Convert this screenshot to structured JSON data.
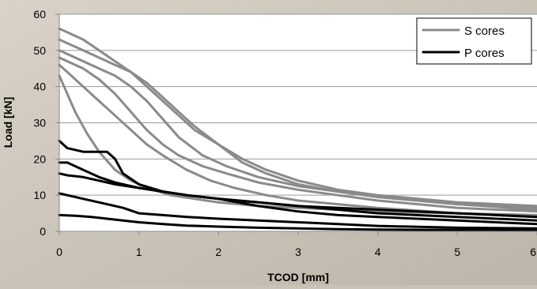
{
  "chart_data": {
    "type": "line",
    "title": "",
    "xlabel": "TCOD [mm]",
    "ylabel": "Load [kN]",
    "xlim": [
      0,
      6
    ],
    "ylim": [
      0,
      60
    ],
    "xticks": [
      "0",
      "1",
      "2",
      "3",
      "4",
      "5",
      "6"
    ],
    "yticks": [
      "0",
      "10",
      "20",
      "30",
      "40",
      "50",
      "60"
    ],
    "grid": "horizontal",
    "legend_position": "top-right",
    "legend": [
      {
        "label": "S cores",
        "color": "#8a8a8a"
      },
      {
        "label": "P cores",
        "color": "#000000"
      }
    ],
    "series": [
      {
        "name": "S cores",
        "color": "#8a8a8a",
        "x": [
          0,
          0.1,
          0.3,
          0.5,
          0.7,
          0.9,
          1.1,
          1.3,
          1.5,
          1.7,
          2.0,
          2.3,
          2.6,
          3.0,
          3.5,
          4.0,
          5.0,
          6.0
        ],
        "y": [
          56,
          55,
          53,
          50,
          47,
          44,
          40,
          36,
          32,
          28,
          24,
          20,
          17,
          14,
          11.5,
          10,
          8,
          7
        ]
      },
      {
        "name": "S cores",
        "color": "#8a8a8a",
        "x": [
          0,
          0.1,
          0.3,
          0.5,
          0.7,
          0.9,
          1.1,
          1.3,
          1.5,
          1.7,
          2.0,
          2.3,
          2.6,
          3.0,
          3.5,
          4.0,
          5.0,
          6.0
        ],
        "y": [
          53,
          52,
          50,
          48,
          46,
          44,
          41,
          37,
          33,
          29,
          24,
          19,
          16,
          13,
          11,
          9.5,
          7.5,
          6.5
        ]
      },
      {
        "name": "S cores",
        "color": "#8a8a8a",
        "x": [
          0,
          0.1,
          0.3,
          0.5,
          0.7,
          0.9,
          1.1,
          1.3,
          1.5,
          1.8,
          2.1,
          2.5,
          3.0,
          3.5,
          4.0,
          5.0,
          6.0
        ],
        "y": [
          50,
          49,
          47,
          45,
          43,
          40,
          36,
          31,
          26,
          21,
          18,
          15,
          12.5,
          11,
          9.5,
          7.5,
          6
        ]
      },
      {
        "name": "S cores",
        "color": "#8a8a8a",
        "x": [
          0,
          0.1,
          0.3,
          0.5,
          0.7,
          0.9,
          1.1,
          1.3,
          1.5,
          1.8,
          2.1,
          2.5,
          3.0,
          3.5,
          4.0,
          5.0,
          6.0
        ],
        "y": [
          48,
          47,
          45,
          42,
          38,
          33,
          28,
          24,
          21,
          18,
          16,
          13.5,
          11.5,
          10,
          8.5,
          6.5,
          5.5
        ]
      },
      {
        "name": "S cores",
        "color": "#8a8a8a",
        "x": [
          0,
          0.1,
          0.3,
          0.5,
          0.7,
          0.9,
          1.1,
          1.3,
          1.6,
          1.9,
          2.2,
          2.6,
          3.0,
          3.5,
          4.0,
          5.0,
          6.0
        ],
        "y": [
          46,
          44,
          40,
          36,
          32,
          28,
          24,
          21,
          17,
          14,
          12,
          10,
          8.5,
          7.5,
          6.5,
          5,
          4
        ]
      },
      {
        "name": "S cores",
        "color": "#8a8a8a",
        "x": [
          0,
          0.1,
          0.2,
          0.35,
          0.5,
          0.7,
          0.9,
          1.1,
          1.4,
          1.7,
          2.0,
          2.5,
          3.0,
          3.5,
          4.0,
          5.0,
          6.0
        ],
        "y": [
          43,
          38,
          33,
          27,
          22,
          17,
          14,
          12,
          10,
          9,
          8,
          7,
          6.5,
          6,
          5.5,
          5,
          4.5
        ]
      },
      {
        "name": "P cores",
        "color": "#000000",
        "x": [
          0,
          0.1,
          0.3,
          0.5,
          0.6,
          0.7,
          0.8,
          1.0,
          1.3,
          1.6,
          2.0,
          2.5,
          3.0,
          3.5,
          4.0,
          5.0,
          6.0
        ],
        "y": [
          25,
          23,
          22,
          22,
          22,
          20,
          16,
          13,
          11,
          10,
          9,
          8,
          7,
          6.5,
          6,
          5,
          4
        ]
      },
      {
        "name": "P cores",
        "color": "#000000",
        "x": [
          0,
          0.1,
          0.3,
          0.5,
          0.7,
          1.0,
          1.3,
          1.6,
          2.0,
          2.5,
          3.0,
          3.5,
          4.0,
          5.0,
          6.0
        ],
        "y": [
          19,
          19,
          17,
          15,
          13.5,
          12,
          11,
          10,
          9,
          8,
          7,
          6,
          5,
          4,
          3
        ]
      },
      {
        "name": "P cores",
        "color": "#000000",
        "x": [
          0,
          0.1,
          0.3,
          0.5,
          0.7,
          1.0,
          1.3,
          1.6,
          2.0,
          2.5,
          3.0,
          3.5,
          4.0,
          5.0,
          6.0
        ],
        "y": [
          16,
          15.5,
          15,
          14,
          13,
          12,
          11,
          10,
          9,
          7,
          5.5,
          4.5,
          4,
          3,
          2
        ]
      },
      {
        "name": "P cores",
        "color": "#000000",
        "x": [
          0,
          0.1,
          0.3,
          0.5,
          0.8,
          1.0,
          1.3,
          1.6,
          2.0,
          2.5,
          3.0,
          3.5,
          4.0,
          5.0,
          6.0
        ],
        "y": [
          10.5,
          10,
          9,
          8,
          6.5,
          5,
          4.5,
          4,
          3.5,
          3,
          2.5,
          2,
          1.5,
          1,
          0.8
        ]
      },
      {
        "name": "P cores",
        "color": "#000000",
        "x": [
          0,
          0.2,
          0.4,
          0.6,
          0.8,
          1.0,
          1.3,
          1.6,
          2.0,
          2.5,
          3.0,
          3.5,
          4.0,
          5.0,
          6.0
        ],
        "y": [
          4.5,
          4.3,
          4,
          3.5,
          3,
          2.5,
          2,
          1.6,
          1.3,
          1,
          0.8,
          0.6,
          0.5,
          0.4,
          0.3
        ]
      }
    ]
  }
}
